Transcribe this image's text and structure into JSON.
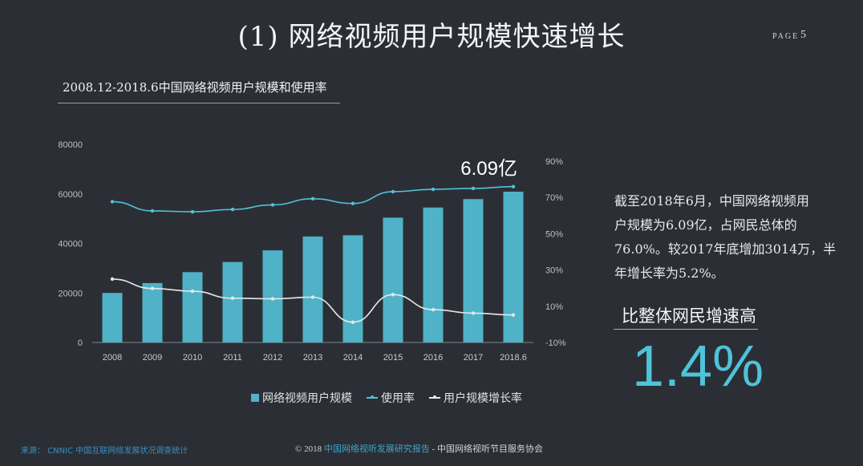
{
  "page": {
    "title": "(1) 网络视频用户规模快速增长",
    "page_label": "PAGE",
    "page_number": "5"
  },
  "chart_title": "2008.12-2018.6中国网络视频用户规模和使用率",
  "callout": "6.09亿",
  "side": {
    "lines": [
      "截至2018年6月，中国网络视频用",
      "户规模为6.09亿，占网民总体的",
      "76.0%。较2017年底增加3014万，半",
      "年增长率为5.2%。"
    ],
    "compare_label": "比整体网民增速高",
    "big_number": "1.4%"
  },
  "source": "来源：  CNNIC 中国互联网络发展状况调查统计",
  "footer": {
    "prefix": "© 2018 ",
    "report": "中国网络视听发展研究报告",
    "suffix": " - 中国网络视听节目服务协会"
  },
  "chart_data": {
    "type": "bar",
    "categories": [
      "2008",
      "2009",
      "2010",
      "2011",
      "2012",
      "2013",
      "2014",
      "2015",
      "2016",
      "2017",
      "2018.6"
    ],
    "ylim": [
      0,
      80000
    ],
    "yticks": [
      "0",
      "20000",
      "40000",
      "60000",
      "80000"
    ],
    "y2lim": [
      -10,
      90
    ],
    "y2ticks": [
      "-10%",
      "10%",
      "30%",
      "50%",
      "70%",
      "90%"
    ],
    "series": [
      {
        "name": "网络视频用户规模",
        "axis": "left",
        "type": "bar",
        "color": "#4fb2c7",
        "values": [
          20000,
          24000,
          28400,
          32500,
          37200,
          42800,
          43300,
          50400,
          54500,
          57900,
          60900
        ]
      },
      {
        "name": "使用率",
        "axis": "right",
        "type": "line",
        "color": "#4fc3d9",
        "values": [
          67.7,
          62.6,
          62.1,
          63.4,
          65.9,
          69.3,
          66.7,
          73.2,
          74.5,
          75.0,
          76.0
        ]
      },
      {
        "name": "用户规模增长率",
        "axis": "right",
        "type": "line",
        "color": "#e6e8ea",
        "values": [
          25.0,
          19.8,
          18.3,
          14.4,
          14.1,
          15.0,
          1.2,
          16.4,
          8.1,
          6.2,
          5.2
        ]
      }
    ],
    "legend_position": "bottom"
  }
}
